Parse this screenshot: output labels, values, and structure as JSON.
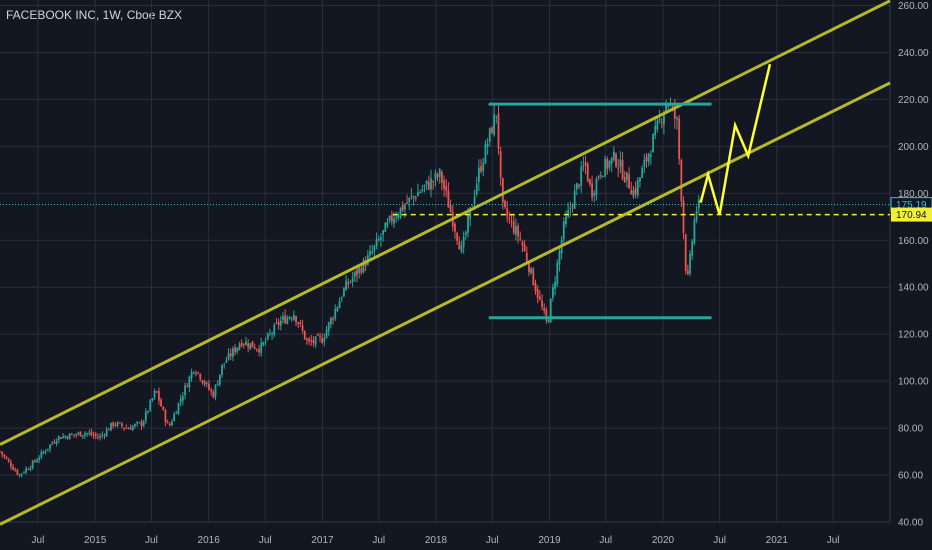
{
  "header": {
    "title": "FACEBOOK INC, 1W, Cboe BZX"
  },
  "colors": {
    "background": "#131722",
    "grid": "#2a2e39",
    "up": "#26a69a",
    "down": "#ef5350",
    "channel": "#b5b82a",
    "box": "#26a69a",
    "projection": "#ffff33",
    "last_price_line": "#26c6da",
    "dashed_level": "#f2ee3a"
  },
  "chart_data": {
    "type": "candlestick",
    "y_axis": {
      "ticks": [
        "260.00",
        "240.00",
        "220.00",
        "200.00",
        "180.00",
        "160.00",
        "140.00",
        "120.00",
        "100.00",
        "80.00",
        "60.00",
        "40.00"
      ],
      "range": [
        40,
        260
      ],
      "position": "right"
    },
    "x_axis": {
      "ticks": [
        "Jul",
        "2015",
        "Jul",
        "2016",
        "Jul",
        "2017",
        "Jul",
        "2018",
        "Jul",
        "2019",
        "Jul",
        "2020",
        "Jul",
        "2021",
        "Jul"
      ],
      "range": [
        "2014-03-01",
        "2021-12-31"
      ]
    },
    "price_labels": [
      {
        "value": 175.19,
        "label": "175.19",
        "style": "last-price"
      },
      {
        "value": 170.94,
        "label": "170.94",
        "style": "dashed-level"
      }
    ],
    "price_path": [
      [
        "2014-03-01",
        70
      ],
      [
        "2014-05-01",
        60
      ],
      [
        "2014-06-15",
        65
      ],
      [
        "2014-09-01",
        76
      ],
      [
        "2014-12-01",
        78
      ],
      [
        "2015-01-15",
        76
      ],
      [
        "2015-03-01",
        82
      ],
      [
        "2015-04-15",
        80
      ],
      [
        "2015-06-01",
        82
      ],
      [
        "2015-07-15",
        96
      ],
      [
        "2015-08-25",
        80
      ],
      [
        "2015-10-01",
        92
      ],
      [
        "2015-11-15",
        106
      ],
      [
        "2016-01-15",
        94
      ],
      [
        "2016-02-15",
        107
      ],
      [
        "2016-04-15",
        117
      ],
      [
        "2016-06-15",
        114
      ],
      [
        "2016-08-15",
        125
      ],
      [
        "2016-10-01",
        129
      ],
      [
        "2016-11-15",
        116
      ],
      [
        "2017-01-01",
        118
      ],
      [
        "2017-03-15",
        140
      ],
      [
        "2017-06-01",
        153
      ],
      [
        "2017-08-15",
        170
      ],
      [
        "2017-11-01",
        180
      ],
      [
        "2018-01-15",
        188
      ],
      [
        "2018-03-25",
        155
      ],
      [
        "2018-05-15",
        187
      ],
      [
        "2018-07-15",
        215
      ],
      [
        "2018-08-01",
        174
      ],
      [
        "2018-10-01",
        160
      ],
      [
        "2018-12-24",
        124
      ],
      [
        "2019-02-15",
        165
      ],
      [
        "2019-04-25",
        193
      ],
      [
        "2019-05-15",
        180
      ],
      [
        "2019-06-15",
        190
      ],
      [
        "2019-08-01",
        195
      ],
      [
        "2019-10-01",
        180
      ],
      [
        "2020-01-15",
        220
      ],
      [
        "2020-02-15",
        210
      ],
      [
        "2020-03-18",
        140
      ],
      [
        "2020-04-15",
        173
      ],
      [
        "2020-05-01",
        175.19
      ]
    ],
    "box": {
      "top": 218,
      "bottom": 127,
      "start": "2018-06-20",
      "end": "2020-06-05"
    },
    "channel_lines": [
      {
        "name": "upper",
        "points": [
          [
            "2014-03-01",
            73
          ],
          [
            "2021-12-31",
            262
          ]
        ]
      },
      {
        "name": "lower",
        "points": [
          [
            "2014-03-01",
            39
          ],
          [
            "2021-12-31",
            227
          ]
        ]
      }
    ],
    "dashed_level": {
      "value": 170.94,
      "start": "2017-08-15",
      "end": "2021-12-31"
    },
    "projection_path": [
      [
        "2020-05-01",
        176
      ],
      [
        "2020-05-25",
        188
      ],
      [
        "2020-07-01",
        170.9
      ],
      [
        "2020-08-20",
        209
      ],
      [
        "2020-10-01",
        196
      ],
      [
        "2020-12-10",
        235
      ]
    ],
    "grid": true
  }
}
